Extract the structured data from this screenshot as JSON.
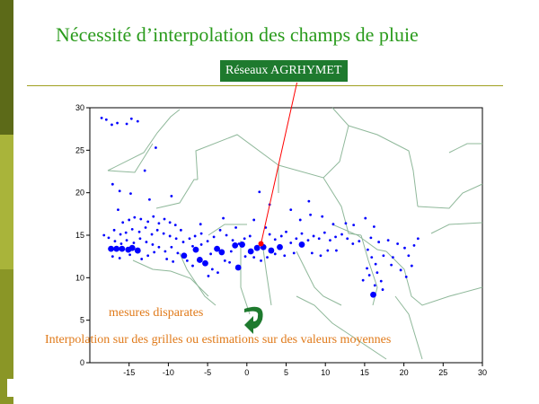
{
  "slide": {
    "title": "Nécessité d’interpolation des champs de pluie",
    "title_color": "#2a9b1c",
    "rule_color": "#a0a020",
    "bar_colors": [
      "#5c6a18",
      "#a9b43a",
      "#8a9626"
    ]
  },
  "badge": {
    "label": "Réseaux AGRHYMET",
    "color": "#1e7a2e"
  },
  "annotations": {
    "disparate_text": "mesures disparates",
    "interpolation_text": "Interpolation sur des grilles ou estimations sur des valeurs moyennes",
    "text_color": "#e07a1a",
    "arrow_icon": "curved-arrow-icon",
    "arrow_color": "#1e7a2e"
  },
  "chart_data": {
    "type": "scatter",
    "title": "",
    "xlabel": "",
    "ylabel": "",
    "xlim": [
      -20,
      30
    ],
    "ylim": [
      0,
      30
    ],
    "xticks": [
      -15,
      -10,
      -5,
      0,
      5,
      10,
      15,
      20,
      25,
      30
    ],
    "yticks": [
      0,
      5,
      10,
      15,
      20,
      25,
      30
    ],
    "grid": false,
    "marker_color": "#0000ff",
    "highlight_color": "#ff0000",
    "highlight_station": {
      "x": 1.8,
      "y": 14.0
    },
    "large_stations": [
      [
        -17.3,
        13.4
      ],
      [
        -16.6,
        13.4
      ],
      [
        -15.9,
        13.4
      ],
      [
        -15.1,
        13.3
      ],
      [
        -14.6,
        13.5
      ],
      [
        -13.9,
        13.2
      ],
      [
        -8.0,
        12.6
      ],
      [
        -6.5,
        13.3
      ],
      [
        -5.3,
        11.7
      ],
      [
        -6.0,
        12.1
      ],
      [
        -3.8,
        13.4
      ],
      [
        -3.2,
        13.0
      ],
      [
        -1.5,
        13.8
      ],
      [
        -1.1,
        11.2
      ],
      [
        -0.6,
        13.9
      ],
      [
        0.5,
        13.1
      ],
      [
        1.3,
        13.5
      ],
      [
        2.1,
        13.6
      ],
      [
        3.1,
        13.2
      ],
      [
        16.1,
        8.0
      ],
      [
        4.2,
        13.6
      ],
      [
        7.0,
        13.9
      ]
    ],
    "stations": [
      [
        -18.5,
        28.8
      ],
      [
        -17.9,
        28.6
      ],
      [
        -17.2,
        28.0
      ],
      [
        -16.5,
        28.2
      ],
      [
        -15.3,
        28.1
      ],
      [
        -13.9,
        28.4
      ],
      [
        -14.7,
        28.7
      ],
      [
        -11.6,
        25.3
      ],
      [
        -13.0,
        22.6
      ],
      [
        -17.1,
        21.0
      ],
      [
        -16.2,
        20.2
      ],
      [
        -14.8,
        19.9
      ],
      [
        -12.4,
        19.2
      ],
      [
        -9.6,
        19.6
      ],
      [
        -16.4,
        18.0
      ],
      [
        -15.8,
        16.5
      ],
      [
        -15.0,
        16.8
      ],
      [
        -14.3,
        17.1
      ],
      [
        -13.5,
        16.9
      ],
      [
        -12.6,
        16.6
      ],
      [
        -11.9,
        17.2
      ],
      [
        -11.2,
        16.4
      ],
      [
        -10.5,
        16.9
      ],
      [
        -9.8,
        16.5
      ],
      [
        -9.1,
        16.2
      ],
      [
        -8.4,
        15.6
      ],
      [
        -16.9,
        15.6
      ],
      [
        -16.1,
        15.1
      ],
      [
        -15.4,
        15.3
      ],
      [
        -14.6,
        15.7
      ],
      [
        -13.7,
        15.4
      ],
      [
        -12.9,
        15.9
      ],
      [
        -12.1,
        15.1
      ],
      [
        -11.4,
        15.6
      ],
      [
        -10.6,
        15.2
      ],
      [
        -9.8,
        14.9
      ],
      [
        -9.0,
        14.6
      ],
      [
        -8.1,
        14.2
      ],
      [
        -7.3,
        14.6
      ],
      [
        -6.6,
        14.9
      ],
      [
        -5.8,
        15.2
      ],
      [
        -5.0,
        14.3
      ],
      [
        -4.2,
        14.8
      ],
      [
        -3.4,
        15.6
      ],
      [
        -2.6,
        15.0
      ],
      [
        -1.8,
        14.4
      ],
      [
        -1.0,
        14.0
      ],
      [
        -0.3,
        14.6
      ],
      [
        0.4,
        14.9
      ],
      [
        -18.2,
        15.0
      ],
      [
        -17.6,
        14.7
      ],
      [
        -16.8,
        14.3
      ],
      [
        -16.0,
        14.0
      ],
      [
        -15.3,
        14.4
      ],
      [
        -14.4,
        14.1
      ],
      [
        -13.6,
        14.6
      ],
      [
        -12.8,
        14.2
      ],
      [
        -12.0,
        13.9
      ],
      [
        -11.2,
        13.6
      ],
      [
        -10.4,
        13.1
      ],
      [
        -9.6,
        13.6
      ],
      [
        -11.8,
        13.0
      ],
      [
        -12.6,
        12.6
      ],
      [
        -13.4,
        12.2
      ],
      [
        -14.9,
        12.7
      ],
      [
        -17.1,
        12.5
      ],
      [
        -16.2,
        12.3
      ],
      [
        -7.6,
        12.0
      ],
      [
        -6.9,
        11.4
      ],
      [
        -4.4,
        11.0
      ],
      [
        -4.9,
        10.2
      ],
      [
        -3.7,
        10.6
      ],
      [
        -2.8,
        12.0
      ],
      [
        -2.2,
        11.8
      ],
      [
        -0.2,
        12.5
      ],
      [
        0.9,
        12.4
      ],
      [
        1.8,
        12.0
      ],
      [
        2.6,
        12.4
      ],
      [
        -1.4,
        15.9
      ],
      [
        -5.9,
        16.3
      ],
      [
        -3.0,
        17.0
      ],
      [
        0.9,
        16.8
      ],
      [
        1.6,
        20.1
      ],
      [
        2.9,
        18.6
      ],
      [
        2.4,
        15.9
      ],
      [
        2.9,
        15.1
      ],
      [
        3.6,
        14.5
      ],
      [
        4.4,
        14.9
      ],
      [
        5.0,
        15.4
      ],
      [
        5.6,
        14.1
      ],
      [
        6.3,
        14.6
      ],
      [
        7.0,
        15.2
      ],
      [
        7.8,
        14.4
      ],
      [
        8.5,
        14.9
      ],
      [
        9.2,
        14.6
      ],
      [
        9.9,
        15.3
      ],
      [
        10.6,
        14.4
      ],
      [
        11.3,
        14.8
      ],
      [
        12.1,
        15.1
      ],
      [
        12.8,
        14.6
      ],
      [
        13.5,
        14.0
      ],
      [
        14.3,
        14.3
      ],
      [
        7.9,
        19.0
      ],
      [
        5.6,
        18.0
      ],
      [
        6.8,
        16.8
      ],
      [
        8.1,
        17.4
      ],
      [
        9.6,
        17.2
      ],
      [
        12.6,
        16.4
      ],
      [
        11.0,
        16.3
      ],
      [
        13.6,
        16.2
      ],
      [
        15.1,
        17.0
      ],
      [
        16.2,
        16.0
      ],
      [
        15.8,
        14.7
      ],
      [
        16.8,
        14.2
      ],
      [
        18.0,
        14.4
      ],
      [
        19.2,
        14.0
      ],
      [
        20.1,
        13.5
      ],
      [
        21.3,
        13.8
      ],
      [
        21.8,
        14.6
      ],
      [
        17.4,
        12.6
      ],
      [
        18.6,
        12.4
      ],
      [
        20.6,
        12.6
      ],
      [
        15.4,
        13.3
      ],
      [
        15.9,
        12.4
      ],
      [
        16.4,
        11.6
      ],
      [
        15.3,
        11.1
      ],
      [
        15.6,
        10.3
      ],
      [
        16.6,
        10.6
      ],
      [
        17.1,
        9.6
      ],
      [
        16.3,
        9.1
      ],
      [
        18.4,
        11.5
      ],
      [
        19.6,
        10.9
      ],
      [
        21.0,
        11.4
      ],
      [
        20.3,
        10.1
      ],
      [
        14.8,
        9.7
      ],
      [
        17.3,
        8.6
      ],
      [
        8.3,
        12.9
      ],
      [
        9.4,
        12.6
      ],
      [
        10.3,
        13.2
      ],
      [
        11.4,
        13.2
      ],
      [
        6.0,
        12.9
      ],
      [
        4.8,
        12.6
      ],
      [
        3.6,
        12.8
      ],
      [
        -8.8,
        12.9
      ],
      [
        -9.4,
        11.9
      ],
      [
        -10.2,
        12.2
      ],
      [
        -2.0,
        13.1
      ],
      [
        -4.6,
        12.8
      ],
      [
        -5.8,
        13.9
      ],
      [
        -6.9,
        13.7
      ]
    ]
  }
}
